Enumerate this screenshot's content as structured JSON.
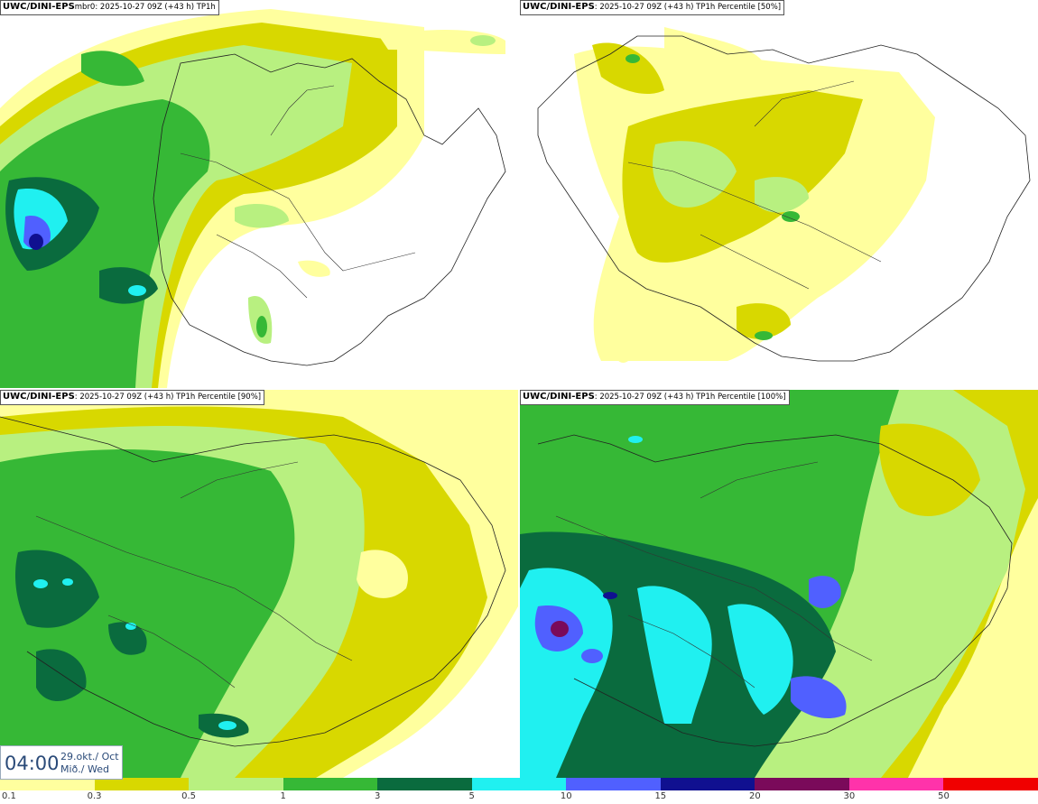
{
  "palette": [
    "#ffff9e",
    "#d8d800",
    "#b8f080",
    "#36b836",
    "#0a6b3e",
    "#20f0f0",
    "#5060ff",
    "#101090",
    "#7a0a5a",
    "#ff33aa",
    "#f00000"
  ],
  "panels": [
    {
      "source": "UWC/DINI-EPS",
      "info": "mbr0: 2025-10-27 09Z (+43 h) TP1h"
    },
    {
      "source": "UWC/DINI-EPS",
      "info": ": 2025-10-27 09Z (+43 h) TP1h Percentile [50%]"
    },
    {
      "source": "UWC/DINI-EPS",
      "info": ": 2025-10-27 09Z (+43 h) TP1h Percentile [90%]"
    },
    {
      "source": "UWC/DINI-EPS",
      "info": ": 2025-10-27 09Z (+43 h) TP1h Percentile [100%]"
    }
  ],
  "timestamp": {
    "time": "04:00",
    "date_line1": "29.okt./ Oct",
    "date_line2": "Mið./ Wed"
  },
  "legend": {
    "labels": [
      "0.1",
      "0.3",
      "0.5",
      "1",
      "3",
      "5",
      "10",
      "15",
      "20",
      "30",
      "50"
    ]
  }
}
